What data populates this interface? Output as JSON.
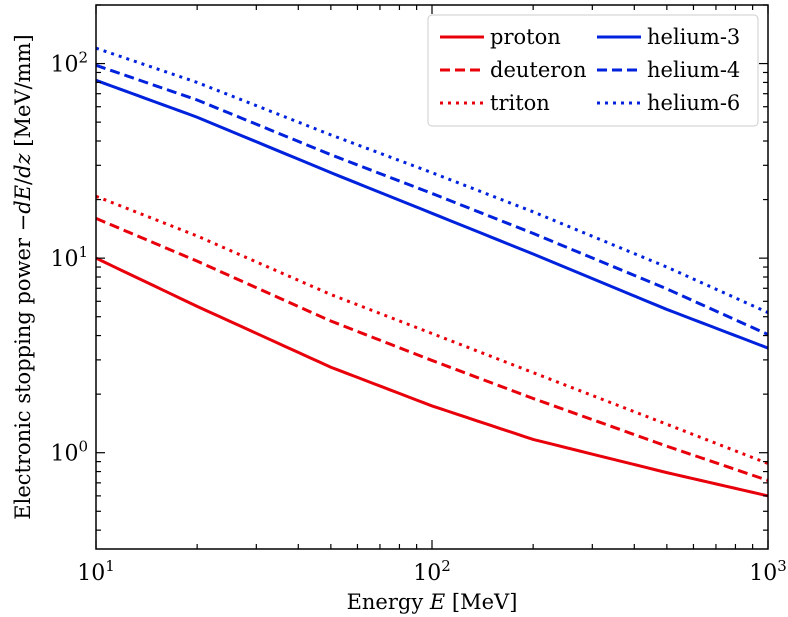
{
  "chart_data": {
    "type": "line",
    "x_scale": "log",
    "y_scale": "log",
    "xlim": [
      10,
      1000
    ],
    "ylim": [
      0.32,
      200
    ],
    "xlabel": "Energy E [MeV]",
    "ylabel": "Electronic stopping power −dE/dz [MeV/mm]",
    "x_ticks": [
      {
        "value": 10,
        "base": "10",
        "exp": "1"
      },
      {
        "value": 100,
        "base": "10",
        "exp": "2"
      },
      {
        "value": 1000,
        "base": "10",
        "exp": "3"
      }
    ],
    "y_ticks": [
      {
        "value": 1,
        "base": "10",
        "exp": "0"
      },
      {
        "value": 10,
        "base": "10",
        "exp": "1"
      },
      {
        "value": 100,
        "base": "10",
        "exp": "2"
      }
    ],
    "legend_position": "top-right",
    "grid": false,
    "x": [
      10,
      20,
      50,
      100,
      200,
      500,
      1000
    ],
    "series": [
      {
        "name": "proton",
        "color": "#e8000b",
        "dash": "solid",
        "values": [
          10.0,
          5.65,
          2.75,
          1.74,
          1.17,
          0.79,
          0.6
        ]
      },
      {
        "name": "deuteron",
        "color": "#e8000b",
        "dash": "dashed",
        "values": [
          16.0,
          9.65,
          4.75,
          2.98,
          1.9,
          1.08,
          0.72
        ]
      },
      {
        "name": "triton",
        "color": "#e8000b",
        "dash": "dotted",
        "values": [
          20.8,
          13.0,
          6.5,
          4.1,
          2.58,
          1.4,
          0.88
        ]
      },
      {
        "name": "helium-3",
        "color": "#0022dd",
        "dash": "solid",
        "values": [
          82,
          53,
          27.5,
          17.0,
          10.5,
          5.45,
          3.45
        ]
      },
      {
        "name": "helium-4",
        "color": "#0022dd",
        "dash": "dashed",
        "values": [
          98,
          65,
          34,
          21.5,
          13.4,
          6.95,
          4.05
        ]
      },
      {
        "name": "helium-6",
        "color": "#0022dd",
        "dash": "dotted",
        "values": [
          120,
          80,
          43,
          27.5,
          17.3,
          9.0,
          5.25
        ]
      }
    ]
  }
}
